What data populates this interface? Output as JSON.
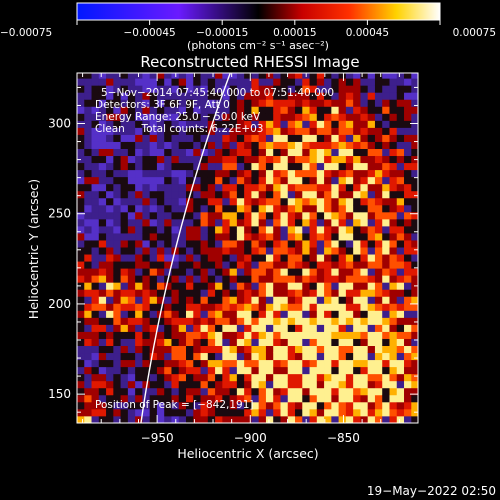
{
  "chart_data": {
    "type": "heatmap",
    "title": "Reconstructed RHESSI Image",
    "xlabel": "Heliocentric X (arcsec)",
    "ylabel": "Heliocentric Y (arcsec)",
    "xlim": [
      -993,
      -810
    ],
    "ylim": [
      134,
      328
    ],
    "x_ticks": [
      -950,
      -900,
      -850
    ],
    "x_tick_labels": [
      "−950",
      "−900",
      "−850"
    ],
    "y_ticks": [
      150,
      200,
      250,
      300
    ],
    "y_tick_labels": [
      "150",
      "200",
      "250",
      "300"
    ],
    "colorbar": {
      "range": [
        -0.00075,
        0.00075
      ],
      "ticks": [
        -0.00075,
        -0.00045,
        -0.00015,
        0.00015,
        0.00045,
        0.00075
      ],
      "tick_labels": [
        "−0.00075",
        "−0.00045",
        "−0.00015",
        "0.00015",
        "0.00045",
        "0.00075"
      ],
      "units_label": "(photons cm⁻² s⁻¹ asec⁻²)"
    },
    "annotations": [
      "5−Nov−2014 07:45:40.000 to 07:51:40.000",
      "Detectors: 3F 6F 9F, Att 0",
      "Energy Range: 25.0 − 50.0 keV",
      "Clean     Total counts: 6.22E+03"
    ],
    "peak_label": "Position of Peak = [−842,191]",
    "peak": [
      -842,
      191
    ],
    "limb_arc": {
      "center": [
        0,
        0
      ],
      "radius_arcsec": 968
    },
    "grid_step_arcsec": 3.9
  },
  "footer": {
    "date": "19−May−2022 02:50"
  }
}
